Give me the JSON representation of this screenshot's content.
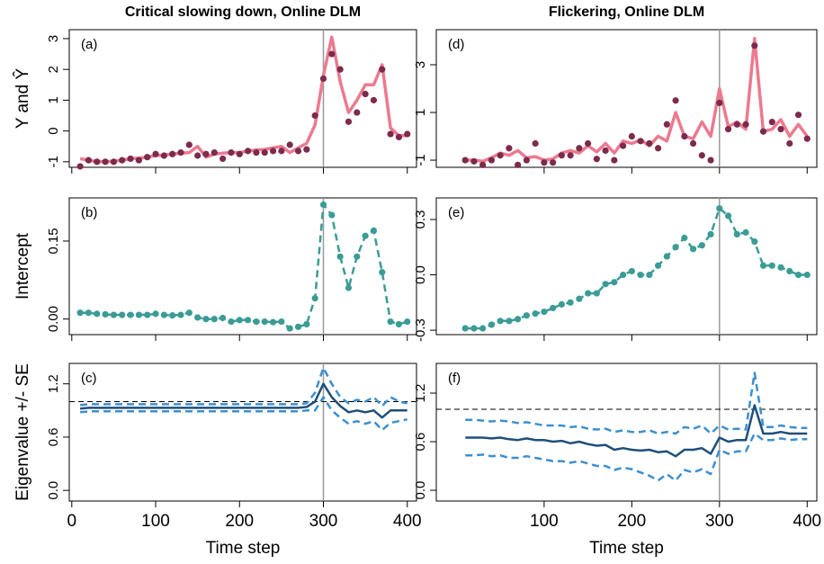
{
  "chart_data": [
    {
      "type": "line",
      "title": "Critical slowing down, Online DLM",
      "panel_label": "(a)",
      "ylabel": "Y and Ŷ",
      "xlim": [
        -3,
        411
      ],
      "xticks": [
        0,
        100,
        200,
        300,
        400
      ],
      "ylim": [
        -1.18,
        3.29
      ],
      "yticks": [
        -1,
        0,
        1,
        2,
        3
      ],
      "vline": 300,
      "x": [
        10,
        20,
        30,
        40,
        50,
        60,
        70,
        80,
        90,
        100,
        110,
        120,
        130,
        140,
        150,
        160,
        170,
        180,
        190,
        200,
        210,
        220,
        230,
        240,
        250,
        260,
        270,
        280,
        290,
        300,
        310,
        320,
        330,
        340,
        350,
        360,
        370,
        380,
        390,
        400
      ],
      "series": [
        {
          "style": "line",
          "color": "#ec7a8f",
          "values": [
            -0.9,
            -0.95,
            -1.0,
            -1.0,
            -0.98,
            -0.95,
            -0.9,
            -0.88,
            -0.85,
            -0.8,
            -0.78,
            -0.75,
            -0.72,
            -0.7,
            -0.5,
            -0.85,
            -0.75,
            -0.72,
            -0.7,
            -0.7,
            -0.65,
            -0.62,
            -0.6,
            -0.55,
            -0.5,
            -0.7,
            -0.55,
            -0.4,
            0.2,
            1.8,
            3.05,
            1.6,
            0.6,
            1.0,
            1.5,
            1.5,
            2.15,
            0.1,
            -0.15,
            -0.15
          ]
        },
        {
          "style": "points",
          "color": "#7d2a4d",
          "values": [
            -1.15,
            -0.95,
            -1.0,
            -1.0,
            -1.0,
            -0.95,
            -0.9,
            -0.95,
            -0.85,
            -0.75,
            -0.8,
            -0.75,
            -0.7,
            -0.45,
            -0.8,
            -0.75,
            -0.7,
            -0.9,
            -0.7,
            -0.75,
            -0.65,
            -0.7,
            -0.7,
            -0.65,
            -0.65,
            -0.45,
            -0.65,
            -0.6,
            0.5,
            1.7,
            2.5,
            2.0,
            0.3,
            0.6,
            1.2,
            1.0,
            2.0,
            -0.1,
            -0.2,
            -0.1
          ]
        }
      ]
    },
    {
      "type": "line",
      "panel_label": "(b)",
      "ylabel": "Intercept",
      "xlim": [
        -3,
        411
      ],
      "xticks": [
        0,
        100,
        200,
        300,
        400
      ],
      "ylim": [
        -0.03,
        0.233
      ],
      "yticks": [
        {
          "value": 0,
          "label": "0.00"
        },
        0.15
      ],
      "vline": 300,
      "x": [
        10,
        20,
        30,
        40,
        50,
        60,
        70,
        80,
        90,
        100,
        110,
        120,
        130,
        140,
        150,
        160,
        170,
        180,
        190,
        200,
        210,
        220,
        230,
        240,
        250,
        260,
        270,
        280,
        290,
        300,
        310,
        320,
        330,
        340,
        350,
        360,
        370,
        380,
        390,
        400
      ],
      "series": [
        {
          "style": "points-dashed",
          "color": "#3b9c96",
          "values": [
            0.012,
            0.012,
            0.01,
            0.009,
            0.008,
            0.008,
            0.008,
            0.008,
            0.008,
            0.01,
            0.008,
            0.007,
            0.008,
            0.012,
            0.003,
            0.0,
            0.0,
            0.002,
            -0.005,
            -0.002,
            -0.002,
            -0.005,
            -0.005,
            -0.006,
            -0.005,
            -0.018,
            -0.015,
            -0.01,
            0.04,
            0.22,
            0.2,
            0.12,
            0.06,
            0.12,
            0.16,
            0.17,
            0.09,
            -0.005,
            -0.01,
            -0.005
          ]
        }
      ]
    },
    {
      "type": "line",
      "panel_label": "(c)",
      "ylabel": "Eigenvalue +/- SE",
      "xlabel": "Time step",
      "xlim": [
        -3,
        411
      ],
      "xticks": [
        0,
        100,
        200,
        300,
        400
      ],
      "ylim": [
        -0.12,
        1.43
      ],
      "yticks": [
        {
          "value": 0,
          "label": "0.0"
        },
        0.6,
        1.2
      ],
      "vline": 300,
      "hline": 1,
      "x": [
        10,
        20,
        30,
        40,
        50,
        60,
        70,
        80,
        90,
        100,
        110,
        120,
        130,
        140,
        150,
        160,
        170,
        180,
        190,
        200,
        210,
        220,
        230,
        240,
        250,
        260,
        270,
        280,
        290,
        300,
        310,
        320,
        330,
        340,
        350,
        360,
        370,
        380,
        390,
        400
      ],
      "series": [
        {
          "style": "dashed",
          "color": "#3c8fcf",
          "values": [
            0.96,
            0.97,
            0.97,
            0.97,
            0.97,
            0.97,
            0.97,
            0.97,
            0.97,
            0.97,
            0.97,
            0.97,
            0.97,
            0.97,
            0.97,
            0.97,
            0.97,
            0.97,
            0.97,
            0.97,
            0.97,
            0.97,
            0.97,
            0.97,
            0.97,
            0.97,
            0.97,
            0.98,
            1.1,
            1.38,
            1.2,
            1.05,
            0.98,
            1.02,
            1.0,
            1.05,
            0.95,
            1.05,
            1.0,
            0.98
          ]
        },
        {
          "style": "dashed",
          "color": "#3c8fcf",
          "values": [
            0.88,
            0.89,
            0.89,
            0.89,
            0.89,
            0.89,
            0.89,
            0.89,
            0.89,
            0.89,
            0.89,
            0.89,
            0.89,
            0.89,
            0.89,
            0.89,
            0.89,
            0.89,
            0.89,
            0.89,
            0.89,
            0.89,
            0.89,
            0.89,
            0.89,
            0.89,
            0.89,
            0.9,
            0.9,
            1.05,
            0.9,
            0.82,
            0.75,
            0.78,
            0.75,
            0.78,
            0.68,
            0.76,
            0.78,
            0.8
          ]
        },
        {
          "style": "line",
          "color": "#1f4f7a",
          "values": [
            0.92,
            0.93,
            0.93,
            0.93,
            0.93,
            0.93,
            0.93,
            0.93,
            0.93,
            0.93,
            0.93,
            0.93,
            0.93,
            0.93,
            0.93,
            0.93,
            0.93,
            0.93,
            0.93,
            0.93,
            0.93,
            0.93,
            0.93,
            0.93,
            0.93,
            0.93,
            0.93,
            0.94,
            1.0,
            1.2,
            1.05,
            0.95,
            0.88,
            0.9,
            0.88,
            0.9,
            0.82,
            0.9,
            0.9,
            0.9
          ]
        }
      ]
    },
    {
      "type": "line",
      "title": "Flickering, Online DLM",
      "panel_label": "(d)",
      "xlim": [
        -23,
        411
      ],
      "xticks": [
        100,
        200,
        300,
        400
      ],
      "ylim": [
        -1.3,
        4.47
      ],
      "yticks": [
        -1,
        1,
        3
      ],
      "vline": 300,
      "x": [
        10,
        20,
        30,
        40,
        50,
        60,
        70,
        80,
        90,
        100,
        110,
        120,
        130,
        140,
        150,
        160,
        170,
        180,
        190,
        200,
        210,
        220,
        230,
        240,
        250,
        260,
        270,
        280,
        290,
        300,
        310,
        320,
        330,
        340,
        350,
        360,
        370,
        380,
        390,
        400
      ],
      "series": [
        {
          "style": "line",
          "color": "#ec7a8f",
          "values": [
            -1.0,
            -1.0,
            -1.05,
            -0.9,
            -0.7,
            -0.8,
            -0.6,
            -0.9,
            -0.85,
            -1.0,
            -0.95,
            -0.7,
            -0.6,
            -0.7,
            -0.4,
            -0.65,
            -0.3,
            -0.7,
            -0.2,
            -0.3,
            -0.15,
            -0.4,
            0.0,
            -0.2,
            1.0,
            0.0,
            -0.1,
            0.6,
            0.0,
            2.0,
            0.4,
            0.6,
            0.3,
            4.1,
            0.2,
            0.3,
            0.7,
            0.0,
            0.5,
            0.0
          ]
        },
        {
          "style": "points",
          "color": "#7d2a4d",
          "values": [
            -1.0,
            -1.05,
            -1.2,
            -1.0,
            -0.8,
            -0.5,
            -1.2,
            -1.0,
            -0.3,
            -1.1,
            -1.1,
            -0.8,
            -0.8,
            -0.5,
            -0.3,
            -0.95,
            -0.6,
            -1.0,
            -0.4,
            0.0,
            -0.2,
            -0.3,
            -0.5,
            0.5,
            1.5,
            0.0,
            -0.3,
            -0.8,
            -1.0,
            1.4,
            0.3,
            0.5,
            0.5,
            3.8,
            0.2,
            0.6,
            0.3,
            -0.3,
            0.9,
            -0.1
          ]
        }
      ]
    },
    {
      "type": "line",
      "panel_label": "(e)",
      "xlim": [
        -23,
        411
      ],
      "xticks": [
        100,
        200,
        300,
        400
      ],
      "ylim": [
        -0.324,
        0.417
      ],
      "yticks": [
        -0.3,
        {
          "value": 0,
          "label": "0.0"
        },
        0.3
      ],
      "vline": 300,
      "x": [
        10,
        20,
        30,
        40,
        50,
        60,
        70,
        80,
        90,
        100,
        110,
        120,
        130,
        140,
        150,
        160,
        170,
        180,
        190,
        200,
        210,
        220,
        230,
        240,
        250,
        260,
        270,
        280,
        290,
        300,
        310,
        320,
        330,
        340,
        350,
        360,
        370,
        380,
        390,
        400
      ],
      "series": [
        {
          "style": "points-dashed",
          "color": "#3b9c96",
          "values": [
            -0.29,
            -0.29,
            -0.29,
            -0.27,
            -0.25,
            -0.25,
            -0.24,
            -0.22,
            -0.21,
            -0.2,
            -0.18,
            -0.16,
            -0.15,
            -0.13,
            -0.1,
            -0.1,
            -0.05,
            -0.04,
            0.0,
            0.02,
            0.0,
            0.0,
            0.05,
            0.1,
            0.15,
            0.2,
            0.14,
            0.16,
            0.22,
            0.36,
            0.32,
            0.22,
            0.23,
            0.18,
            0.05,
            0.05,
            0.04,
            0.02,
            0.0,
            0.0
          ]
        }
      ]
    },
    {
      "type": "line",
      "panel_label": "(f)",
      "xlabel": "Time step",
      "xlim": [
        -23,
        411
      ],
      "xticks": [
        100,
        200,
        300,
        400
      ],
      "ylim": [
        -0.133,
        1.567
      ],
      "yticks": [
        {
          "value": 0,
          "label": "0.0"
        },
        0.6,
        1.2
      ],
      "vline": 300,
      "hline": 1,
      "x": [
        10,
        20,
        30,
        40,
        50,
        60,
        70,
        80,
        90,
        100,
        110,
        120,
        130,
        140,
        150,
        160,
        170,
        180,
        190,
        200,
        210,
        220,
        230,
        240,
        250,
        260,
        270,
        280,
        290,
        300,
        310,
        320,
        330,
        340,
        350,
        360,
        370,
        380,
        390,
        400
      ],
      "series": [
        {
          "style": "dashed",
          "color": "#3c8fcf",
          "values": [
            0.87,
            0.87,
            0.86,
            0.85,
            0.86,
            0.85,
            0.83,
            0.84,
            0.82,
            0.8,
            0.8,
            0.8,
            0.78,
            0.79,
            0.76,
            0.75,
            0.76,
            0.72,
            0.74,
            0.72,
            0.72,
            0.74,
            0.7,
            0.72,
            0.7,
            0.78,
            0.76,
            0.8,
            0.7,
            0.8,
            0.75,
            0.76,
            0.75,
            1.45,
            0.78,
            0.78,
            0.8,
            0.78,
            0.77,
            0.77
          ]
        },
        {
          "style": "dashed",
          "color": "#3c8fcf",
          "values": [
            0.43,
            0.43,
            0.44,
            0.42,
            0.43,
            0.4,
            0.4,
            0.42,
            0.4,
            0.38,
            0.36,
            0.36,
            0.34,
            0.36,
            0.33,
            0.3,
            0.3,
            0.25,
            0.28,
            0.26,
            0.22,
            0.18,
            0.12,
            0.2,
            0.12,
            0.25,
            0.22,
            0.26,
            0.2,
            0.5,
            0.45,
            0.48,
            0.48,
            0.7,
            0.62,
            0.62,
            0.64,
            0.62,
            0.63,
            0.63
          ]
        },
        {
          "style": "line",
          "color": "#1f4f7a",
          "values": [
            0.65,
            0.65,
            0.65,
            0.64,
            0.65,
            0.63,
            0.62,
            0.64,
            0.62,
            0.62,
            0.6,
            0.61,
            0.58,
            0.6,
            0.57,
            0.55,
            0.56,
            0.5,
            0.52,
            0.5,
            0.49,
            0.5,
            0.47,
            0.48,
            0.42,
            0.5,
            0.5,
            0.52,
            0.45,
            0.65,
            0.6,
            0.62,
            0.62,
            1.05,
            0.7,
            0.7,
            0.72,
            0.7,
            0.7,
            0.7
          ]
        }
      ]
    }
  ]
}
